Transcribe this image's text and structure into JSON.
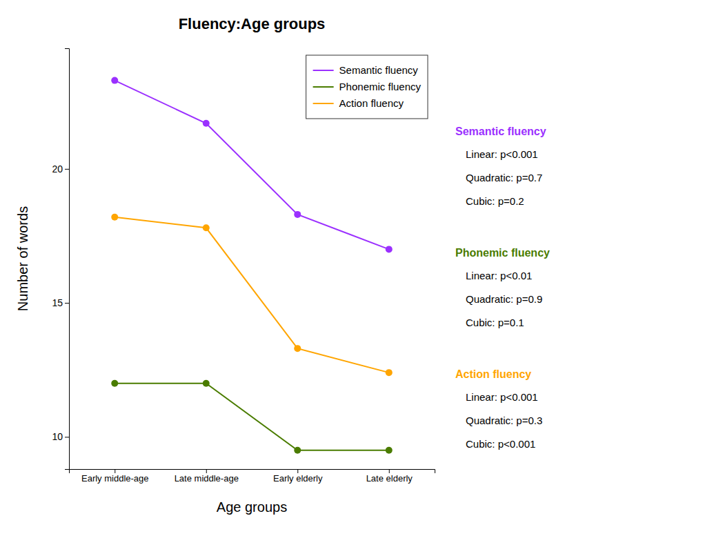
{
  "chart_data": {
    "type": "line",
    "title": "Fluency:Age groups",
    "xlabel": "Age groups",
    "ylabel": "Number of words",
    "categories": [
      "Early middle-age",
      "Late middle-age",
      "Early elderly",
      "Late elderly"
    ],
    "series": [
      {
        "name": "Semantic fluency",
        "color": "#9B30FF",
        "values": [
          23.3,
          21.7,
          18.3,
          17.0
        ]
      },
      {
        "name": "Phonemic fluency",
        "color": "#4A7C00",
        "values": [
          12.0,
          12.0,
          9.5,
          9.5
        ]
      },
      {
        "name": "Action fluency",
        "color": "#FFA500",
        "values": [
          18.2,
          17.8,
          13.3,
          12.4
        ]
      }
    ],
    "ylim": [
      8.8,
      24.5
    ],
    "yticks": [
      10,
      15,
      20
    ],
    "marker": "circle",
    "legend": "upper right",
    "grid": false,
    "annotations": [
      {
        "title": "Semantic fluency",
        "color": "#9B30FF",
        "lines": [
          "Linear: p<0.001",
          "Quadratic: p=0.7",
          "Cubic: p=0.2"
        ]
      },
      {
        "title": "Phonemic fluency",
        "color": "#4A7C00",
        "lines": [
          "Linear: p<0.01",
          "Quadratic: p=0.9",
          "Cubic: p=0.1"
        ]
      },
      {
        "title": "Action fluency",
        "color": "#FFA500",
        "lines": [
          "Linear: p<0.001",
          "Quadratic: p=0.3",
          "Cubic: p<0.001"
        ]
      }
    ]
  }
}
